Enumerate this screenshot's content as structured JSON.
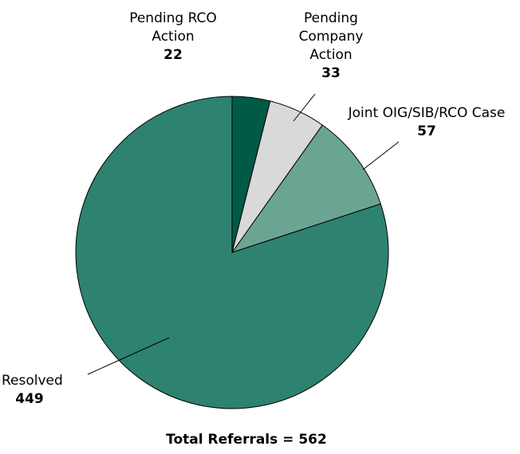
{
  "chart_data": {
    "type": "pie",
    "categories": [
      "Pending RCO Action",
      "Pending Company Action",
      "Joint OIG/SIB/RCO Case",
      "Resolved"
    ],
    "values": [
      22,
      33,
      57,
      449
    ],
    "colors": [
      "#005a46",
      "#d9d9d9",
      "#6aa593",
      "#2e8270"
    ],
    "footer": "Total Referrals = 562"
  }
}
